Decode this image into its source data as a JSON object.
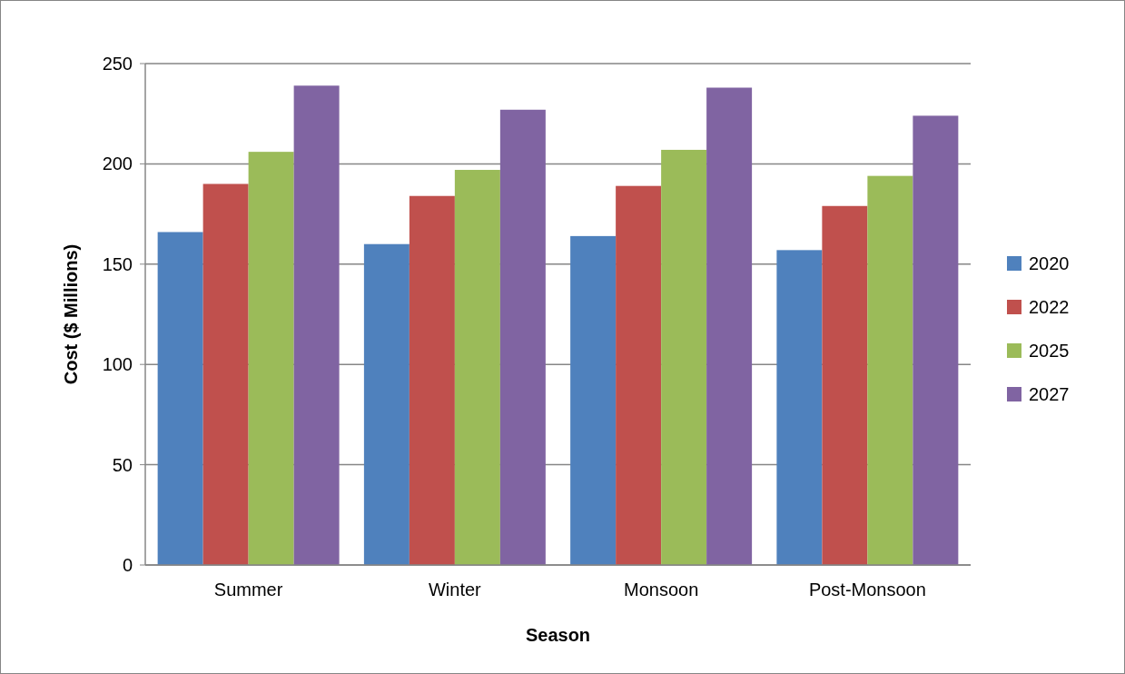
{
  "chart_data": {
    "type": "bar",
    "xlabel": "Season",
    "ylabel": "Cost ($ Millions)",
    "categories": [
      "Summer",
      "Winter",
      "Monsoon",
      "Post-Monsoon"
    ],
    "series": [
      {
        "name": "2020",
        "color": "#4f81bd",
        "values": [
          166,
          160,
          164,
          157
        ]
      },
      {
        "name": "2022",
        "color": "#c0504d",
        "values": [
          190,
          184,
          189,
          179
        ]
      },
      {
        "name": "2025",
        "color": "#9bbb59",
        "values": [
          206,
          197,
          207,
          194
        ]
      },
      {
        "name": "2027",
        "color": "#8064a2",
        "values": [
          239,
          227,
          238,
          224
        ]
      }
    ],
    "ylim": [
      0,
      250
    ],
    "yticks": [
      0,
      50,
      100,
      150,
      200,
      250
    ],
    "grid": "y",
    "legend": "right"
  }
}
